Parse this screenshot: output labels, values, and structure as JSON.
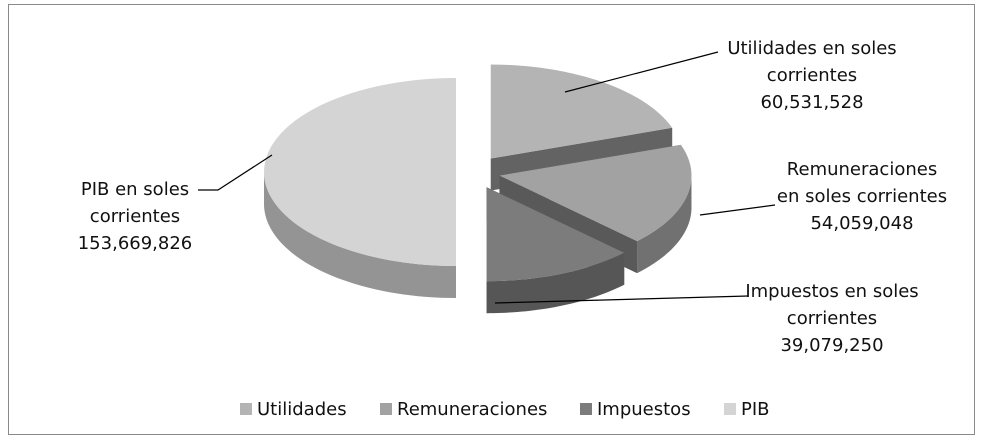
{
  "chart_data": {
    "type": "pie3d",
    "categories": [
      "Utilidades",
      "Remuneraciones",
      "Impuestos",
      "PIB"
    ],
    "values": [
      60531528,
      54059048,
      39079250,
      153669826
    ],
    "value_labels": [
      "60,531,528",
      "54,059,048",
      "39,079,250",
      "153,669,826"
    ],
    "labels": [
      [
        "Utilidades en soles",
        "corrientes"
      ],
      [
        "Remuneraciones",
        "en soles corrientes"
      ],
      [
        "Impuestos en soles",
        "corrientes"
      ],
      [
        "PIB en soles",
        "corrientes"
      ]
    ],
    "colors": [
      "#b4b4b4",
      "#a2a2a2",
      "#7c7c7c",
      "#d4d4d4"
    ],
    "legend": "bottom"
  }
}
